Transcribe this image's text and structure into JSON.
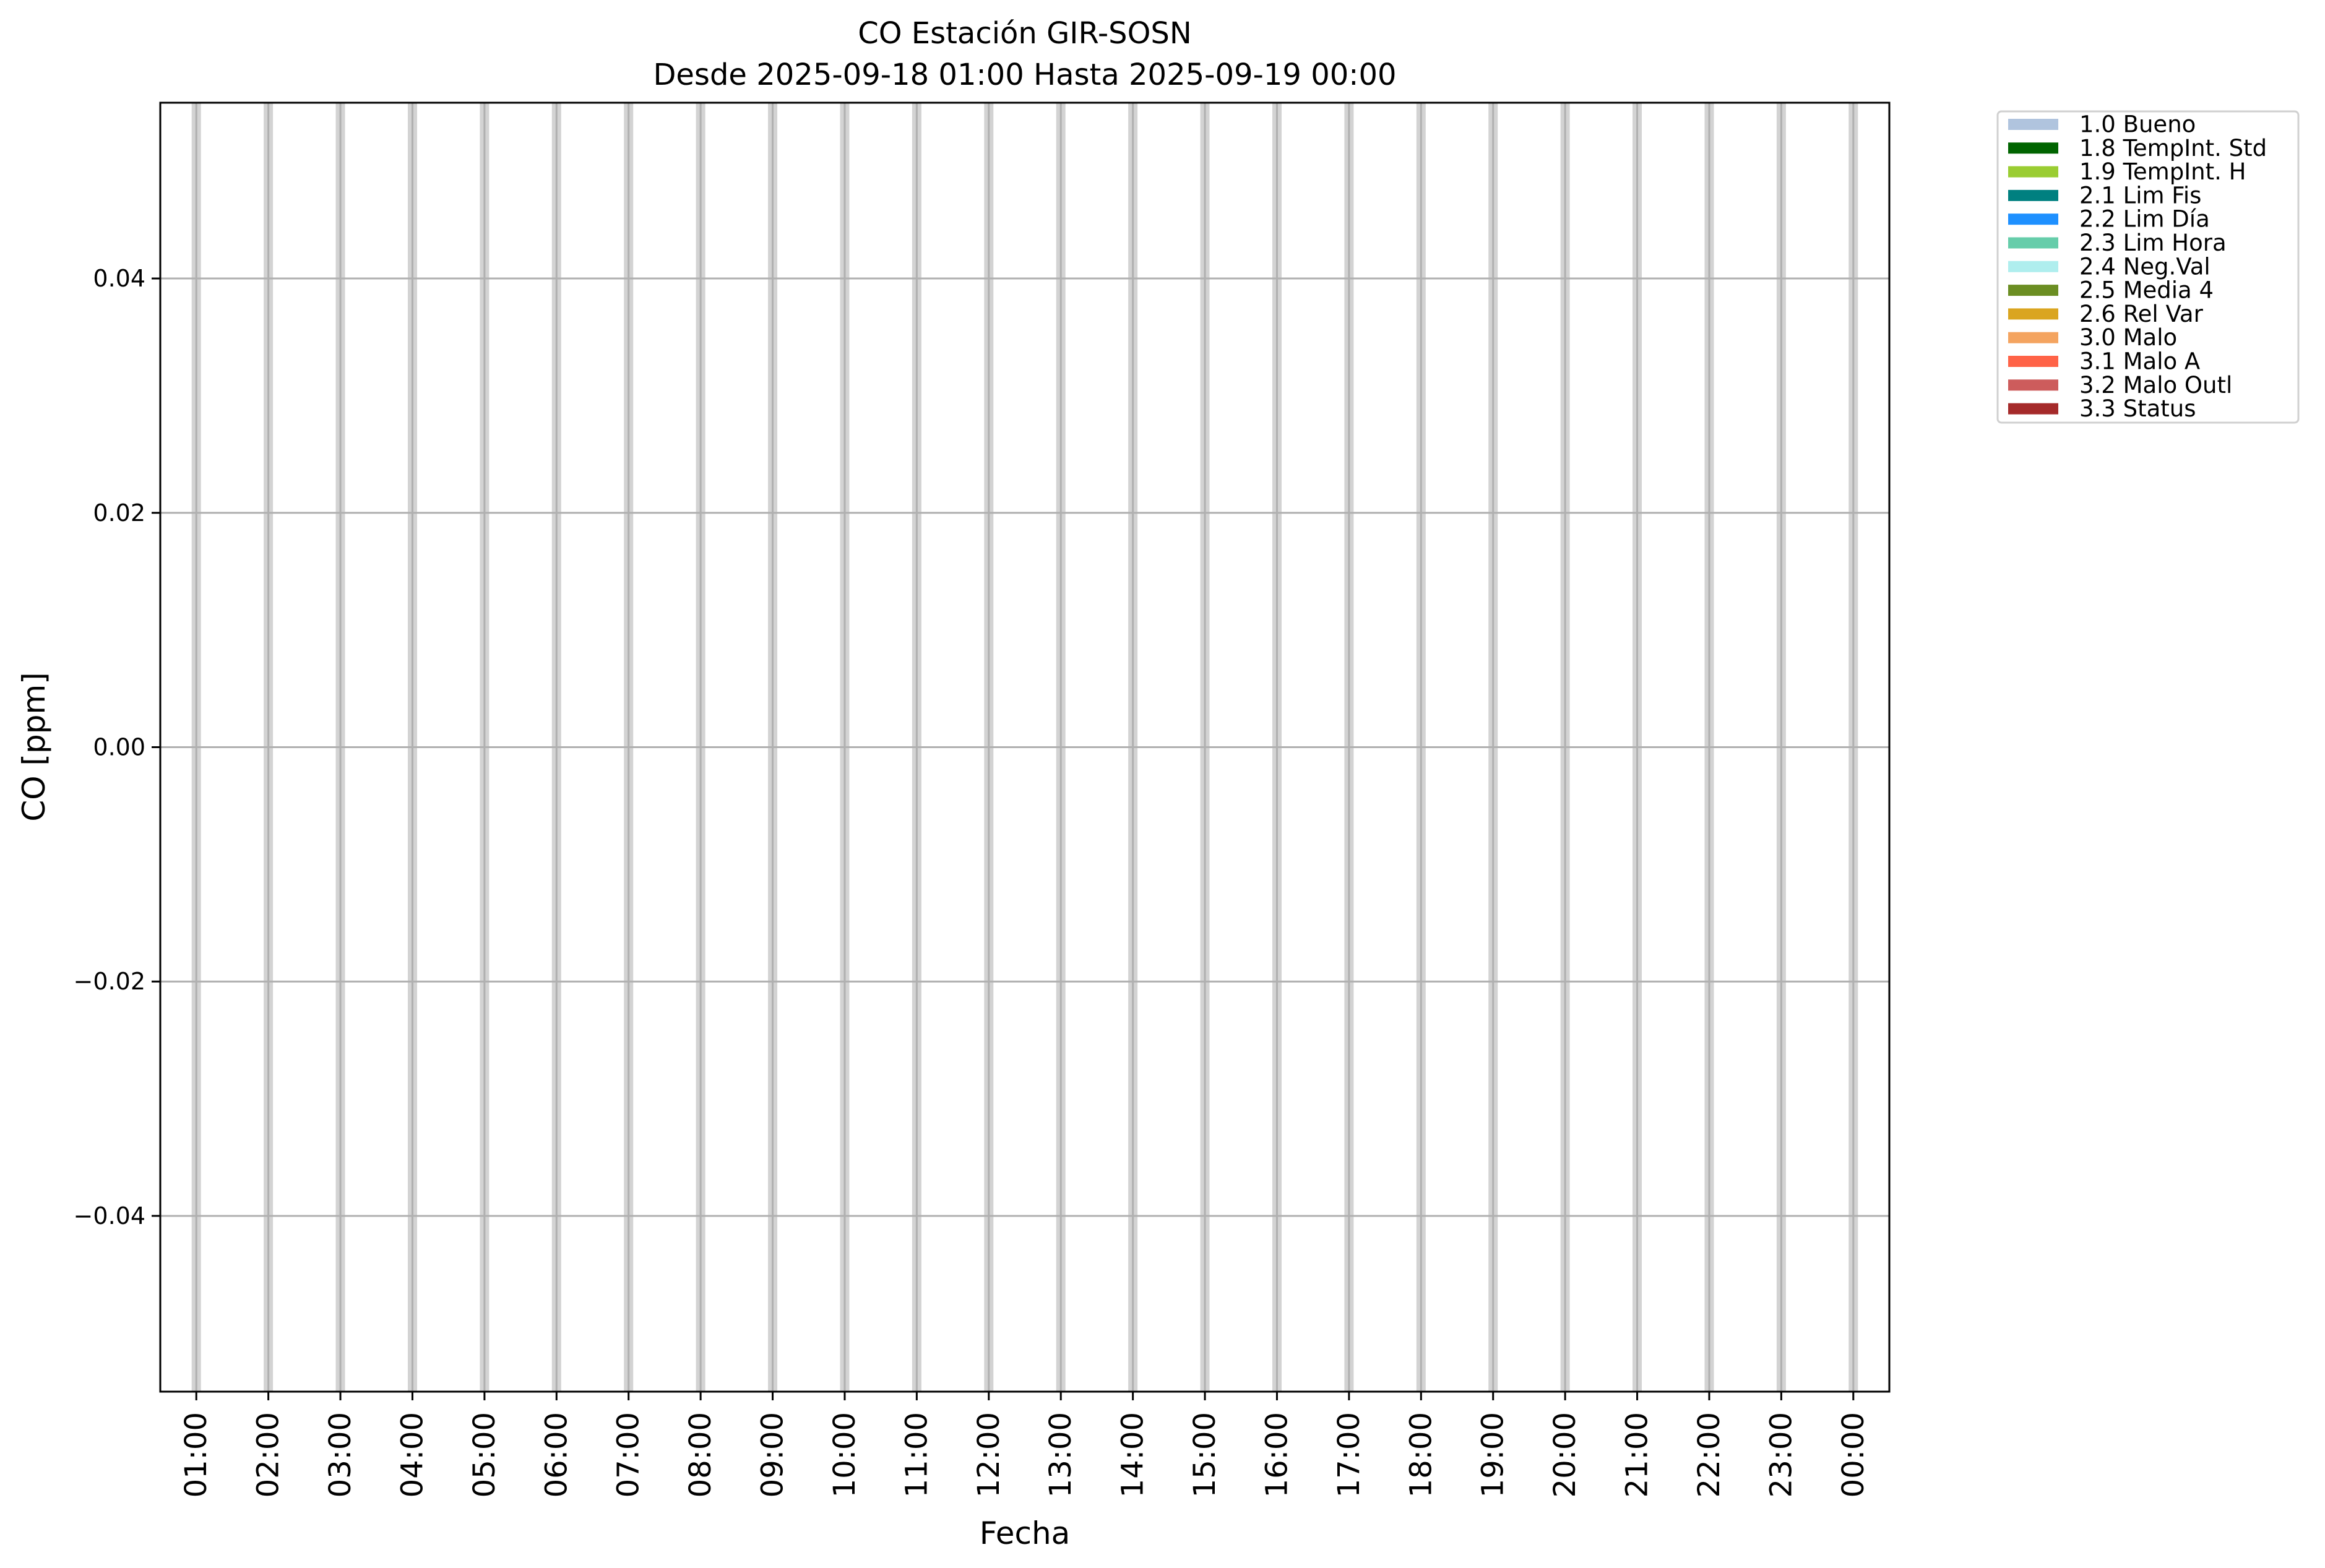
{
  "chart_data": {
    "type": "bar",
    "title": "CO Estación GIR-SOSN",
    "subtitle": "Desde 2025-09-18 01:00 Hasta 2025-09-19 00:00",
    "xlabel": "Fecha",
    "ylabel": "CO [ppm]",
    "x": [
      "01:00",
      "02:00",
      "03:00",
      "04:00",
      "05:00",
      "06:00",
      "07:00",
      "08:00",
      "09:00",
      "10:00",
      "11:00",
      "12:00",
      "13:00",
      "14:00",
      "15:00",
      "16:00",
      "17:00",
      "18:00",
      "19:00",
      "20:00",
      "21:00",
      "22:00",
      "23:00",
      "00:00"
    ],
    "ylim": [
      -0.055,
      0.055
    ],
    "yticks": [
      0.04,
      0.02,
      0.0,
      -0.02,
      -0.04
    ],
    "ytick_labels": [
      "0.04",
      "0.02",
      "0.00",
      "−0.02",
      "−0.04"
    ],
    "grid": true,
    "band_color": "#d3d3d3",
    "grid_color": "#b0b0b0",
    "legend_placement": "outside-top-right",
    "legend": [
      {
        "label": "1.0 Bueno",
        "color": "#b0c4de"
      },
      {
        "label": "1.8 TempInt. Std",
        "color": "#006400"
      },
      {
        "label": "1.9 TempInt. H",
        "color": "#9acd32"
      },
      {
        "label": "2.1 Lim Fis",
        "color": "#008080"
      },
      {
        "label": "2.2 Lim Día",
        "color": "#1e90ff"
      },
      {
        "label": "2.3 Lim Hora",
        "color": "#66cdaa"
      },
      {
        "label": "2.4 Neg.Val",
        "color": "#afeeee"
      },
      {
        "label": "2.5 Media 4",
        "color": "#6b8e23"
      },
      {
        "label": "2.6 Rel Var",
        "color": "#daa520"
      },
      {
        "label": "3.0 Malo",
        "color": "#f4a460"
      },
      {
        "label": "3.1 Malo A",
        "color": "#ff6347"
      },
      {
        "label": "3.2 Malo Outl",
        "color": "#cd5c5c"
      },
      {
        "label": "3.3 Status",
        "color": "#a52a2a"
      }
    ]
  }
}
